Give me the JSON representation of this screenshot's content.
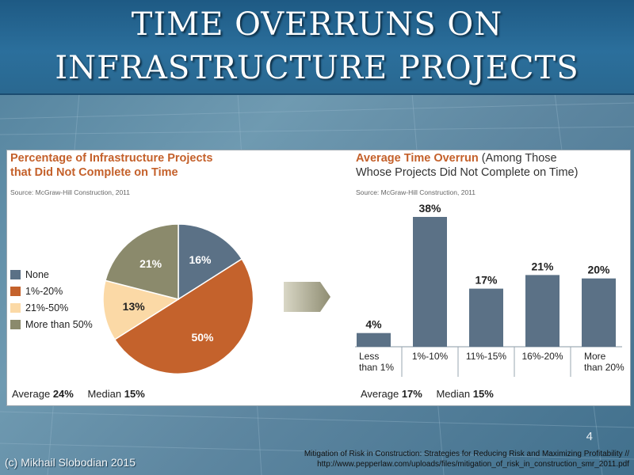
{
  "slide": {
    "title_line1": "TIME OVERRUNS ON",
    "title_line2": "INFRASTRUCTURE PROJECTS",
    "page_number": "4",
    "copyright": "(c) Mikhail Slobodian 2015",
    "citation_line1": "Mitigation of Risk in Construction: Strategies for Reducing Risk and Maximizing Profitability //",
    "citation_line2": "http://www.pepperlaw.com/uploads/files/mitigation_of_risk_in_construction_smr_2011.pdf"
  },
  "colors": {
    "slate": "#5b7186",
    "orange": "#c4622c",
    "peach": "#fbd9a6",
    "olive": "#8b8a6c",
    "arrow": "#9c9a80"
  },
  "icons": {
    "arrow": "right-arrow-icon"
  },
  "chart_data": [
    {
      "type": "pie",
      "title_line1": "Percentage of Infrastructure Projects",
      "title_line2": "that Did Not Complete on Time",
      "source": "Source: McGraw-Hill Construction, 2011",
      "categories": [
        "None",
        "1%-20%",
        "21%-50%",
        "More than 50%"
      ],
      "values": [
        16,
        50,
        13,
        21
      ],
      "labels": [
        "16%",
        "50%",
        "13%",
        "21%"
      ],
      "legend_placement": "left",
      "stats": {
        "average_label": "Average",
        "average_value": "24%",
        "median_label": "Median",
        "median_value": "15%"
      }
    },
    {
      "type": "bar",
      "title_bold": "Average Time Overrun",
      "title_rest": " (Among Those",
      "title_line2": "Whose Projects Did Not Complete on Time)",
      "source": "Source: McGraw-Hill Construction, 2011",
      "categories": [
        "Less than 1%",
        "1%-10%",
        "11%-15%",
        "16%-20%",
        "More than 20%"
      ],
      "category_lines": [
        [
          "Less",
          "than 1%"
        ],
        [
          "1%-10%"
        ],
        [
          "11%-15%"
        ],
        [
          "16%-20%"
        ],
        [
          "More",
          "than 20%"
        ]
      ],
      "values": [
        4,
        38,
        17,
        21,
        20
      ],
      "labels": [
        "4%",
        "38%",
        "17%",
        "21%",
        "20%"
      ],
      "ylim": [
        0,
        38
      ],
      "grid": false,
      "stats": {
        "average_label": "Average",
        "average_value": "17%",
        "median_label": "Median",
        "median_value": "15%"
      }
    }
  ]
}
